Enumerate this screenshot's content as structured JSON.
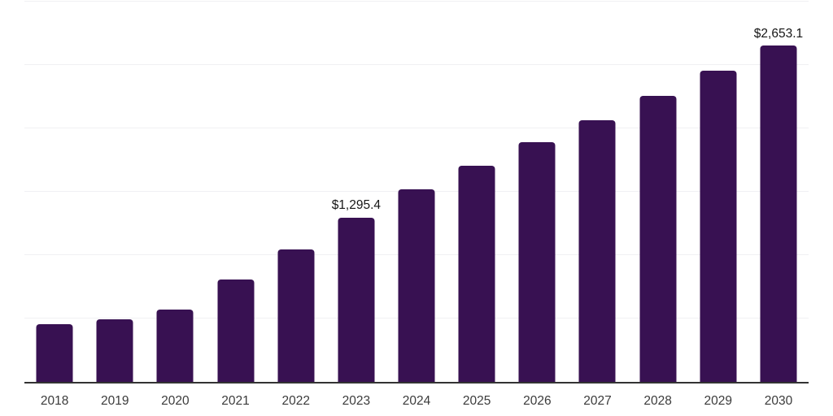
{
  "chart_data": {
    "type": "bar",
    "title": "",
    "xlabel": "",
    "ylabel": "",
    "categories": [
      "2018",
      "2019",
      "2020",
      "2021",
      "2022",
      "2023",
      "2024",
      "2025",
      "2026",
      "2027",
      "2028",
      "2029",
      "2030"
    ],
    "values": [
      455.0,
      495.5,
      572.3,
      805.8,
      1046.8,
      1295.4,
      1517.1,
      1705.0,
      1891.2,
      2062.1,
      2254.3,
      2457.4,
      2653.1
    ],
    "value_labels": {
      "2023": "$1,295.4",
      "2030": "$2,653.1"
    },
    "ylim": [
      0,
      3000
    ],
    "grid_step": 500,
    "grid": "horizontal",
    "legend_position": "none",
    "colors": {
      "bar": "#381152",
      "axis_line": "#333333",
      "gridline": "#f0f0f3",
      "tick_label": "#3b3b3b",
      "value_label": "#161616",
      "background": "#ffffff"
    }
  }
}
